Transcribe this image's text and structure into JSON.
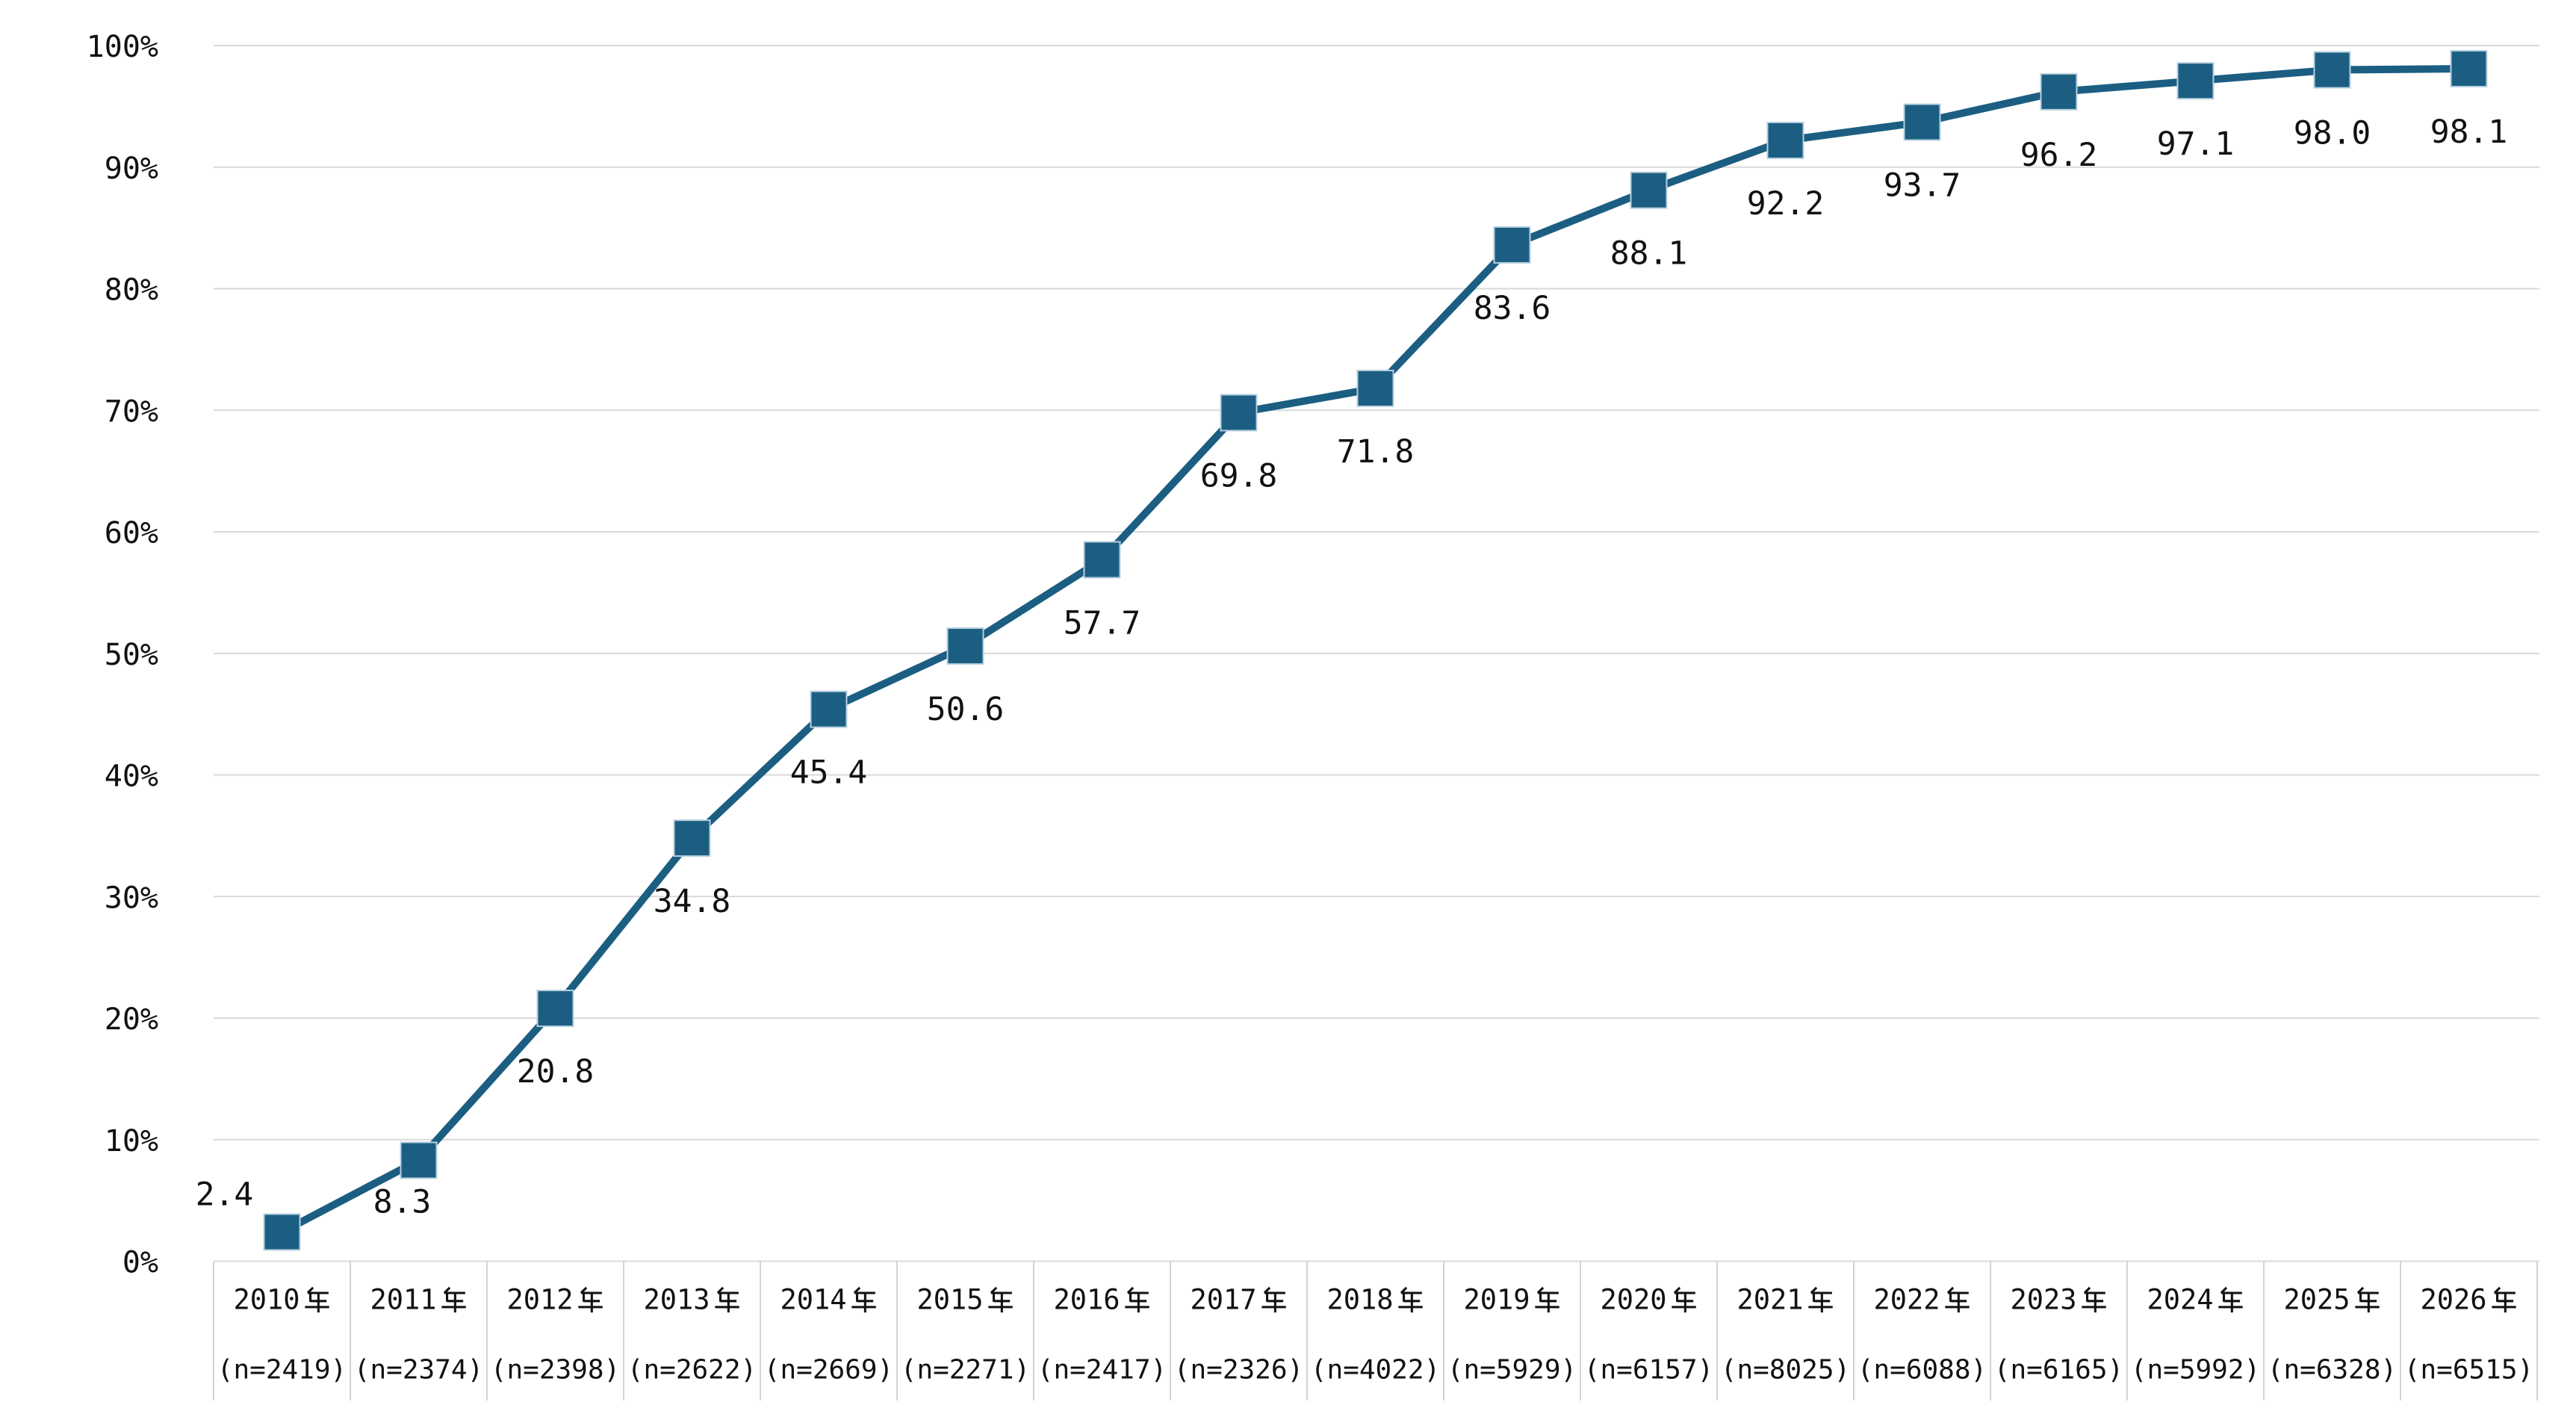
{
  "chart_data": {
    "type": "line",
    "title": "",
    "categories": [
      "2010年",
      "2011年",
      "2012年",
      "2013年",
      "2014年",
      "2015年",
      "2016年",
      "2017年",
      "2018年",
      "2019年",
      "2020年",
      "2021年",
      "2022年",
      "2023年",
      "2024年",
      "2025年",
      "2026年"
    ],
    "category_sublabels": [
      "(n=2419)",
      "(n=2374)",
      "(n=2398)",
      "(n=2622)",
      "(n=2669)",
      "(n=2271)",
      "(n=2417)",
      "(n=2326)",
      "(n=4022)",
      "(n=5929)",
      "(n=6157)",
      "(n=8025)",
      "(n=6088)",
      "(n=6165)",
      "(n=5992)",
      "(n=6328)",
      "(n=6515)"
    ],
    "series": [
      {
        "name": "series-1",
        "values": [
          2.4,
          8.3,
          20.8,
          34.8,
          45.4,
          50.6,
          57.7,
          69.8,
          71.8,
          83.6,
          88.1,
          92.2,
          93.7,
          96.2,
          97.1,
          98.0,
          98.1
        ],
        "data_labels": [
          "2.4",
          "8.3",
          "20.8",
          "34.8",
          "45.4",
          "50.6",
          "57.7",
          "69.8",
          "71.8",
          "83.6",
          "88.1",
          "92.2",
          "93.7",
          "96.2",
          "97.1",
          "98.0",
          "98.1"
        ]
      }
    ],
    "xlabel": "",
    "ylabel": "",
    "y_axis": {
      "tick_labels": [
        "0%",
        "10%",
        "20%",
        "30%",
        "40%",
        "50%",
        "60%",
        "70%",
        "80%",
        "90%",
        "100%"
      ],
      "min": 0,
      "max": 100,
      "grid": true
    },
    "legend": "none",
    "marker": "square",
    "colors": {
      "line": "#1B5E82",
      "marker_fill": "#1B5E82",
      "marker_edge": "#B7CFDF",
      "gridline": "#D9D9D9",
      "table_border": "#D3D3D3",
      "text": "#111111"
    }
  }
}
